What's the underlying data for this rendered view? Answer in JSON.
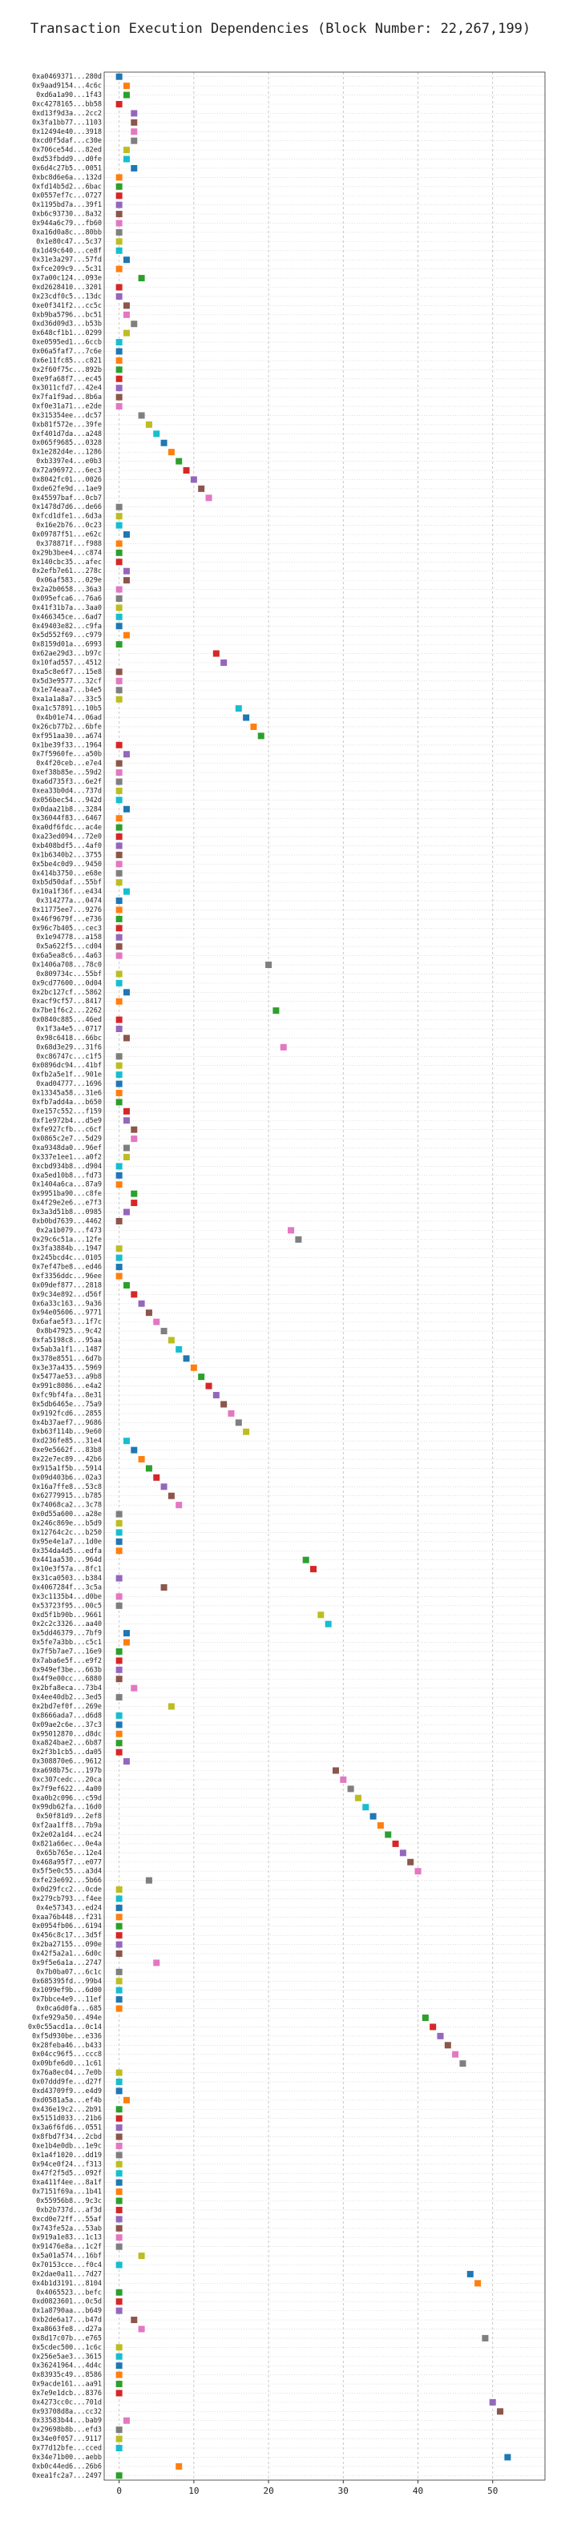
{
  "chart_data": {
    "type": "dot",
    "title": "Transaction Execution Dependencies (Block Number: 22,267,199)",
    "categories": [
      "0xa0469371...280d",
      "0x9aad9154...4c6c",
      "0xd6a1a90...1f43",
      "0xc4278165...bb58",
      "0xd13f9d3a...2cc2",
      "0x3fa1bb77...1103",
      "0x12494e40...3918",
      "0xcd0f5daf...c30e",
      "0x706ce54d...82ed",
      "0xd53fbdd9...d0fe",
      "0x6d4c27b5...0051",
      "0xbc8d6e6a...132d",
      "0xfd14b5d2...6bac",
      "0x0557ef7c...0727",
      "0x1195bd7a...39f1",
      "0xb6c93730...8a32",
      "0x944a6c79...fb60",
      "0xa16d0a8c...80bb",
      "0x1e80c47...5c37",
      "0x1d49c640...ce8f",
      "0x31e3a297...57fd",
      "0xfce209c9...5c31",
      "0x7a00c124...093e",
      "0xd2628410...3201",
      "0x23cdf0c5...13dc",
      "0xe0f341f2...cc5c",
      "0xb9ba5796...bc51",
      "0xd36d09d3...b53b",
      "0x648cf1b1...0299",
      "0xe0595ed1...6ccb",
      "0x06a5faf7...7c6e",
      "0x6e11fc85...c821",
      "0x2f60f75c...892b",
      "0xe9fa68f7...ec45",
      "0x3011cfd7...42e4",
      "0x7fa1f9ad...8b6a",
      "0xf0e31a71...e2de",
      "0x315354ee...dc57",
      "0xb81f572e...39fe",
      "0xf401d7da...a248",
      "0x065f9685...0328",
      "0x1e282d4e...1286",
      "0xb3397e4...e0b3",
      "0x72a96972...6ec3",
      "0x8042fc01...0026",
      "0xde62fe9d...1ae9",
      "0x45597baf...0cb7",
      "0x1478d7d6...de66",
      "0xfcd1dfe1...6d3a",
      "0x16e2b76...0c23",
      "0x09787f51...e62c",
      "0x378871f...f988",
      "0x29b3bee4...c874",
      "0x140cbc35...afec",
      "0x2efb7e61...278c",
      "0x06af583...029e",
      "0x2a2b0658...36a3",
      "0x095efca6...76a6",
      "0x41f31b7a...3aa0",
      "0x466345ce...6ad7",
      "0x49403e82...c9fa",
      "0x5d552f69...c979",
      "0x8159d01a...6993",
      "0x62ae29d3...b97c",
      "0x10fad557...4512",
      "0xa5c8e6f7...15e8",
      "0x5d3e9577...32cf",
      "0x1e74eaa7...b4e5",
      "0xa1a1a8a7...33c5",
      "0xa1c57891...10b5",
      "0x4b01e74...06ad",
      "0x26cb77b2...6bfe",
      "0xf951aa30...a674",
      "0x1be39f33...1964",
      "0x7f5960fe...a50b",
      "0x4f20ceb...e7e4",
      "0xef38b85e...59d2",
      "0xa6d735f3...6e2f",
      "0xea33b0d4...737d",
      "0x056bec54...942d",
      "0x0daa21b8...3284",
      "0x36044f83...6467",
      "0xa0df6fdc...ac4e",
      "0xa23ed094...72e0",
      "0xb408bdf5...4af0",
      "0x1b6340b2...3755",
      "0x5be4c0d9...9450",
      "0x414b3750...e68e",
      "0xb5d50daf...55bf",
      "0x10a1f36f...e434",
      "0x314277a...0474",
      "0x11775ee7...9276",
      "0x46f9679f...e736",
      "0x96c7b405...cec3",
      "0x1e94778...a158",
      "0x5a622f5...cd04",
      "0x6a5ea8c6...4a63",
      "0x1406a708...78c0",
      "0x809734c...55bf",
      "0x9cd77600...0d04",
      "0x2bc127cf...5862",
      "0xacf9cf57...8417",
      "0x7be1f6c2...2262",
      "0x0840c885...46ed",
      "0x1f3a4e5...0717",
      "0x98c6418...66bc",
      "0x68d3e29...31f6",
      "0xc86747c...c1f5",
      "0x0896dc94...41bf",
      "0xfb2a5e1f...901e",
      "0xad04777...1696",
      "0x13345a58...31e6",
      "0xfb7add4a...b650",
      "0xe157c552...f159",
      "0xf1e972b4...d5e9",
      "0xfe927cfb...c6cf",
      "0x0865c2e7...5d29",
      "0xa9348da0...96ef",
      "0x337e1ee1...a0f2",
      "0xcbd934b8...d904",
      "0xa5ed10b8...fd73",
      "0x1404a6ca...87a9",
      "0x9951ba90...c8fe",
      "0x4f29e2e6...e7f3",
      "0x3a3d51b8...0985",
      "0xb0bd7639...4462",
      "0x2a1b079...f473",
      "0x29c6c51a...12fe",
      "0x3fa3884b...1947",
      "0x245bcd4c...0105",
      "0x7ef47be8...ed46",
      "0xf3356ddc...96ee",
      "0x09def877...2818",
      "0x9c34e892...d56f",
      "0x6a33c163...9a36",
      "0x94e05606...9771",
      "0x6afae5f3...1f7c",
      "0x8b47925...9c42",
      "0xfa5198c8...95aa",
      "0x5ab3a1f1...1487",
      "0x378e8551...6d7b",
      "0x3e37a435...5969",
      "0x5477ae53...a9b8",
      "0x991c8086...e4a2",
      "0xfc9bf4fa...8e31",
      "0x5db6465e...75a9",
      "0x9192fcd6...2855",
      "0x4b37aef7...9686",
      "0xb63f114b...9e60",
      "0xd236fe85...31e4",
      "0xe9e5662f...83b8",
      "0x22e7ec89...42b6",
      "0x915a1f5b...5914",
      "0x09d403b6...02a3",
      "0x16a7ffe8...53c8",
      "0x62779915...b785",
      "0x74068ca2...3c78",
      "0x0d55a600...a28e",
      "0x246c869e...b5d9",
      "0x12764c2c...b250",
      "0x95e4e1a7...1d0e",
      "0x354da4d5...edfa",
      "0x441aa530...964d",
      "0x10e3f57a...8fc1",
      "0x31ca0503...b384",
      "0x4067284f...3c5a",
      "0x3c1135b4...d0be",
      "0x53723f95...00c5",
      "0xd5f1b90b...9661",
      "0x2c2c3326...aa40",
      "0x5dd46379...7bf9",
      "0x5fe7a3bb...c5c1",
      "0x7f5b7ae7...16e9",
      "0x7aba6e5f...e9f2",
      "0x949ef3be...663b",
      "0x4f9e00cc...6880",
      "0x2bfa8eca...73b4",
      "0x4ee40db2...3ed5",
      "0x2bd7ef0f...269e",
      "0x8666ada7...d6d8",
      "0x09ae2c6e...37c3",
      "0x95012870...d8dc",
      "0xa824bae2...6b87",
      "0x2f3b1cb5...da05",
      "0x308870e6...9612",
      "0xa698b75c...197b",
      "0xc307cedc...20ca",
      "0x7f9ef622...4a00",
      "0xa0b2c096...c59d",
      "0x99db62fa...16d0",
      "0x50f81d9...2ef8",
      "0xf2aa1ff8...7b9a",
      "0x2e02a1d4...ec24",
      "0x821a66ec...0e4a",
      "0x65b765e...12e4",
      "0x468a95f7...e077",
      "0x5f5e0c55...a3d4",
      "0xfe23e692...5b66",
      "0x0d29fcc2...0cde",
      "0x279cb793...f4ee",
      "0x4e57343...ed24",
      "0xaa76b448...f231",
      "0x0954fb06...6194",
      "0x456c8c17...3d5f",
      "0x2ba27155...090e",
      "0x42f5a2a1...6d0c",
      "0x9f5e6a1a...2747",
      "0x7b0ba07...6c1c",
      "0x685395fd...99b4",
      "0x1099ef9b...6d00",
      "0x7bbce4e9...11ef",
      "0x0ca6d0fa...685",
      "0xfe929a50...494e",
      "0x0c55acd1a...0c14",
      "0xf5d930be...e336",
      "0x28feba46...b433",
      "0x04cc96f5...ccc8",
      "0x09bfe6d0...1c61",
      "0x76a8ec04...7e0b",
      "0x07ddd9fe...d27f",
      "0xd43709f9...e4d9",
      "0xd0581a5a...ef4b",
      "0x436e19c2...2b91",
      "0x5151d033...21b6",
      "0x3a6f6fd6...0551",
      "0x8fbd7f34...2cbd",
      "0xe1b4e0db...1e9c",
      "0x1a4f1020...dd19",
      "0x94ce0f24...f313",
      "0x47f2f5d5...092f",
      "0xa411f4ee...8a1f",
      "0x7151f69a...1b41",
      "0x55956b8...9c3c",
      "0xb2b737d...af3d",
      "0xcd0e72ff...55af",
      "0x743fe52a...53ab",
      "0x919a1e83...1c13",
      "0x91476e8a...1c2f",
      "0x5a01a574...16bf",
      "0x70153cce...f0c4",
      "0x2dae0a11...7d27",
      "0x4b1d3191...8104",
      "0x4065523...befc",
      "0xd0823601...0c5d",
      "0x1a8790aa...b649",
      "0xb2de6a17...b47d",
      "0xa8663fe8...d27a",
      "0x8d17c07b...e765",
      "0x5cdec500...1c6c",
      "0x256e5ae3...3615",
      "0x36241964...4d4c",
      "0x83935c49...8586",
      "0x9acde161...aa91",
      "0x7e9e1dcb...8376",
      "0x4273cc0c...701d",
      "0x93708d8a...cc32",
      "0x33583b44...bab9",
      "0x29698b8b...efd3",
      "0x34e0f057...9117",
      "0x77d12bfe...cced",
      "0x34e71b00...aebb",
      "0xb0c44ed6...26b6",
      "0xea1fc2a7...2497"
    ],
    "values": [
      0,
      1,
      1,
      0,
      2,
      2,
      2,
      2,
      1,
      1,
      2,
      0,
      0,
      0,
      0,
      0,
      0,
      0,
      0,
      0,
      1,
      0,
      3,
      0,
      0,
      1,
      1,
      2,
      1,
      0,
      0,
      0,
      0,
      0,
      0,
      0,
      0,
      3,
      4,
      5,
      6,
      7,
      8,
      9,
      10,
      11,
      12,
      0,
      0,
      0,
      1,
      0,
      0,
      0,
      1,
      1,
      0,
      0,
      0,
      0,
      0,
      1,
      0,
      13,
      14,
      0,
      0,
      0,
      0,
      16,
      17,
      18,
      19,
      0,
      1,
      0,
      0,
      0,
      0,
      0,
      1,
      0,
      0,
      0,
      0,
      0,
      0,
      0,
      0,
      1,
      0,
      0,
      0,
      0,
      0,
      0,
      0,
      20,
      0,
      0,
      1,
      0,
      21,
      0,
      0,
      1,
      22,
      0,
      0,
      0,
      0,
      0,
      0,
      1,
      1,
      2,
      2,
      1,
      1,
      0,
      0,
      0,
      2,
      2,
      1,
      0,
      23,
      24,
      0,
      0,
      0,
      0,
      1,
      2,
      3,
      4,
      5,
      6,
      7,
      8,
      9,
      10,
      11,
      12,
      13,
      14,
      15,
      16,
      17,
      1,
      2,
      3,
      4,
      5,
      6,
      7,
      8,
      0,
      0,
      0,
      0,
      0,
      25,
      26,
      0,
      6,
      0,
      0,
      27,
      28,
      1,
      1,
      0,
      0,
      0,
      0,
      2,
      0,
      7,
      0,
      0,
      0,
      0,
      0,
      1,
      29,
      30,
      31,
      32,
      33,
      34,
      35,
      36,
      37,
      38,
      39,
      40,
      4,
      0,
      0,
      0,
      0,
      0,
      0,
      0,
      0,
      5,
      0,
      0,
      0,
      0,
      0,
      41,
      42,
      43,
      44,
      45,
      46,
      0,
      0,
      0,
      1,
      0,
      0,
      0,
      0,
      0,
      0,
      0,
      0,
      0,
      0,
      0,
      0,
      0,
      0,
      0,
      0,
      3,
      0,
      47,
      48,
      0,
      0,
      0,
      2,
      3,
      49,
      0,
      0,
      0,
      0,
      0,
      0,
      50,
      51,
      1,
      0,
      0,
      0,
      52,
      8,
      0
    ],
    "palette": [
      "#1f77b4",
      "#ff7f0e",
      "#2ca02c",
      "#d62728",
      "#9467bd",
      "#8c564b",
      "#e377c2",
      "#7f7f7f",
      "#bcbd22",
      "#17becf"
    ],
    "xlim": [
      -2,
      57
    ],
    "xticks": [
      0,
      10,
      20,
      30,
      40,
      50
    ],
    "grid": true
  }
}
